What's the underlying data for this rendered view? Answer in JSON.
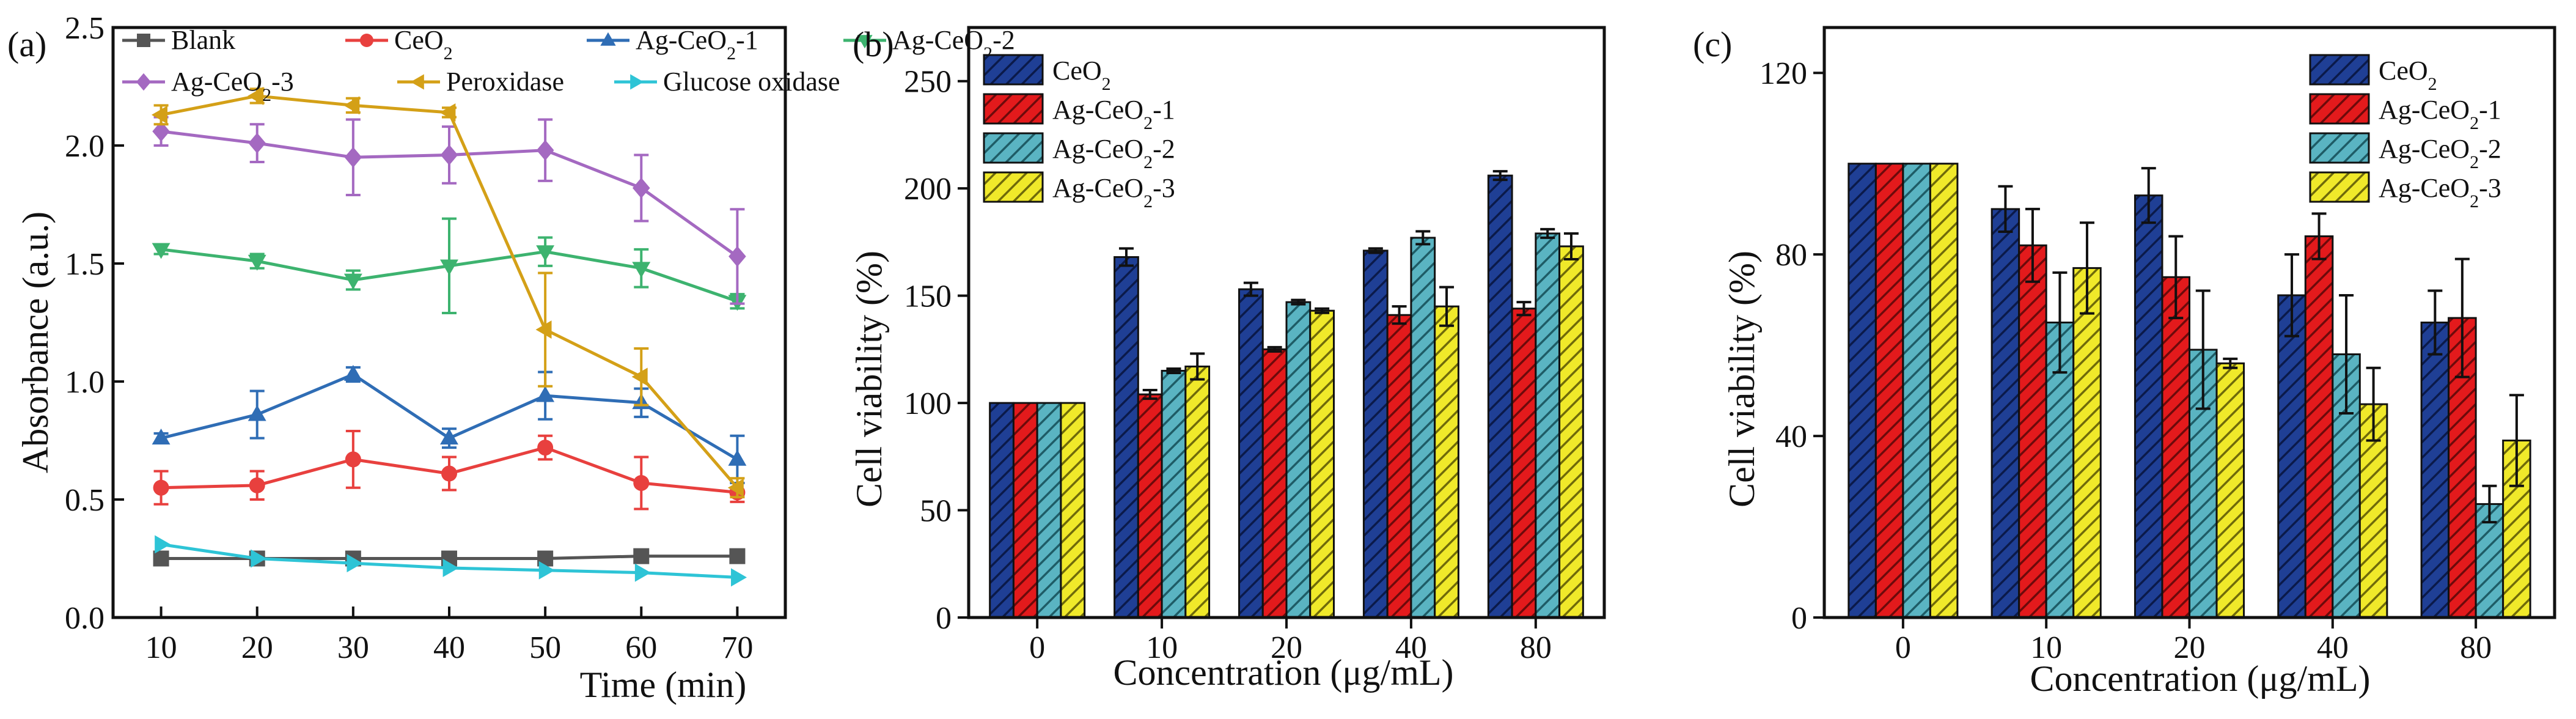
{
  "chart_data": [
    {
      "type": "line",
      "panel_label": "(a)",
      "xlabel": "Time (min)",
      "ylabel": "Absorbance (a.u.)",
      "x": [
        10,
        20,
        30,
        40,
        50,
        60,
        70
      ],
      "x_ticks": [
        "10",
        "20",
        "30",
        "40",
        "50",
        "60",
        "70"
      ],
      "xlim": [
        5,
        75
      ],
      "ylim": [
        0,
        2.5
      ],
      "y_ticks": [
        "0.0",
        "0.5",
        "1.0",
        "1.5",
        "2.0",
        "2.5"
      ],
      "series": [
        {
          "name": "Blank",
          "name_main": "Blank",
          "name_sub": "",
          "name_tail": "",
          "color": "#555555",
          "marker": "square",
          "values": [
            0.25,
            0.25,
            0.25,
            0.25,
            0.25,
            0.26,
            0.26
          ],
          "errors": [
            0,
            0,
            0,
            0,
            0,
            0,
            0
          ]
        },
        {
          "name": "CeO2",
          "name_main": "CeO",
          "name_sub": "2",
          "name_tail": "",
          "color": "#e8403e",
          "marker": "circle",
          "values": [
            0.55,
            0.56,
            0.67,
            0.61,
            0.72,
            0.57,
            0.53
          ],
          "errors": [
            0.07,
            0.06,
            0.12,
            0.07,
            0.05,
            0.11,
            0.04
          ]
        },
        {
          "name": "Ag-CeO2-1",
          "name_main": "Ag-CeO",
          "name_sub": "2",
          "name_tail": "-1",
          "color": "#2f6db5",
          "marker": "triangle-up",
          "values": [
            0.76,
            0.86,
            1.03,
            0.76,
            0.94,
            0.91,
            0.67
          ],
          "errors": [
            0.02,
            0.1,
            0.03,
            0.04,
            0.1,
            0.06,
            0.1
          ]
        },
        {
          "name": "Ag-CeO2-2",
          "name_main": "Ag-CeO",
          "name_sub": "2",
          "name_tail": "-2",
          "color": "#3db36f",
          "marker": "triangle-down",
          "values": [
            1.56,
            1.51,
            1.43,
            1.49,
            1.55,
            1.48,
            1.34
          ],
          "errors": [
            0.02,
            0.03,
            0.04,
            0.2,
            0.06,
            0.08,
            0.03
          ]
        },
        {
          "name": "Ag-CeO2-3",
          "name_main": "Ag-CeO",
          "name_sub": "2",
          "name_tail": "-3",
          "color": "#a469c1",
          "marker": "diamond",
          "values": [
            2.06,
            2.01,
            1.95,
            1.96,
            1.98,
            1.82,
            1.53
          ],
          "errors": [
            0.06,
            0.08,
            0.16,
            0.12,
            0.13,
            0.14,
            0.2
          ]
        },
        {
          "name": "Peroxidase",
          "name_main": "Peroxidase",
          "name_sub": "",
          "name_tail": "",
          "color": "#d4a017",
          "marker": "triangle-left",
          "values": [
            2.13,
            2.21,
            2.17,
            2.14,
            1.22,
            1.02,
            0.55
          ],
          "errors": [
            0.04,
            0.03,
            0.03,
            0.02,
            0.24,
            0.12,
            0.04
          ]
        },
        {
          "name": "Glucose oxidase",
          "name_main": "Glucose oxidase",
          "name_sub": "",
          "name_tail": "",
          "color": "#2ec4d6",
          "marker": "triangle-right",
          "values": [
            0.31,
            0.25,
            0.23,
            0.21,
            0.2,
            0.19,
            0.17
          ],
          "errors": [
            0,
            0,
            0,
            0,
            0,
            0,
            0
          ]
        }
      ]
    },
    {
      "type": "bar",
      "panel_label": "(b)",
      "xlabel": "Concentration (μg/mL)",
      "ylabel": "Cell viability (%)",
      "categories": [
        "0",
        "10",
        "20",
        "40",
        "80"
      ],
      "ylim": [
        0,
        275
      ],
      "y_ticks": [
        "0",
        "50",
        "100",
        "150",
        "200",
        "250"
      ],
      "series": [
        {
          "name": "CeO2",
          "name_main": "CeO",
          "name_sub": "2",
          "name_tail": "",
          "color": "#1f3f95",
          "values": [
            100,
            168,
            153,
            171,
            206
          ],
          "errors": [
            0,
            4,
            3,
            1,
            2
          ]
        },
        {
          "name": "Ag-CeO2-1",
          "name_main": "Ag-CeO",
          "name_sub": "2",
          "name_tail": "-1",
          "color": "#e31a1c",
          "values": [
            100,
            104,
            125,
            141,
            144
          ],
          "errors": [
            0,
            2,
            1,
            4,
            3
          ]
        },
        {
          "name": "Ag-CeO2-2",
          "name_main": "Ag-CeO",
          "name_sub": "2",
          "name_tail": "-2",
          "color": "#5ab4c2",
          "values": [
            100,
            115,
            147,
            177,
            179
          ],
          "errors": [
            0,
            1,
            1,
            3,
            2
          ]
        },
        {
          "name": "Ag-CeO2-3",
          "name_main": "Ag-CeO",
          "name_sub": "2",
          "name_tail": "-3",
          "color": "#f0e92a",
          "values": [
            100,
            117,
            143,
            145,
            173
          ],
          "errors": [
            0,
            6,
            1,
            9,
            6
          ]
        }
      ]
    },
    {
      "type": "bar",
      "panel_label": "(c)",
      "xlabel": "Concentration (μg/mL)",
      "ylabel": "Cell viability (%)",
      "categories": [
        "0",
        "10",
        "20",
        "40",
        "80"
      ],
      "ylim": [
        0,
        130
      ],
      "y_ticks": [
        "0",
        "40",
        "80",
        "120"
      ],
      "series": [
        {
          "name": "CeO2",
          "name_main": "CeO",
          "name_sub": "2",
          "name_tail": "",
          "color": "#1f3f95",
          "values": [
            100,
            90,
            93,
            71,
            65
          ],
          "errors": [
            0,
            5,
            6,
            9,
            7
          ]
        },
        {
          "name": "Ag-CeO2-1",
          "name_main": "Ag-CeO",
          "name_sub": "2",
          "name_tail": "-1",
          "color": "#e31a1c",
          "values": [
            100,
            82,
            75,
            84,
            66
          ],
          "errors": [
            0,
            8,
            9,
            5,
            13
          ]
        },
        {
          "name": "Ag-CeO2-2",
          "name_main": "Ag-CeO",
          "name_sub": "2",
          "name_tail": "-2",
          "color": "#5ab4c2",
          "values": [
            100,
            65,
            59,
            58,
            25
          ],
          "errors": [
            0,
            11,
            13,
            13,
            4
          ]
        },
        {
          "name": "Ag-CeO2-3",
          "name_main": "Ag-CeO",
          "name_sub": "2",
          "name_tail": "-3",
          "color": "#f0e92a",
          "values": [
            100,
            77,
            56,
            47,
            39
          ],
          "errors": [
            0,
            10,
            1,
            8,
            10
          ]
        }
      ]
    }
  ]
}
